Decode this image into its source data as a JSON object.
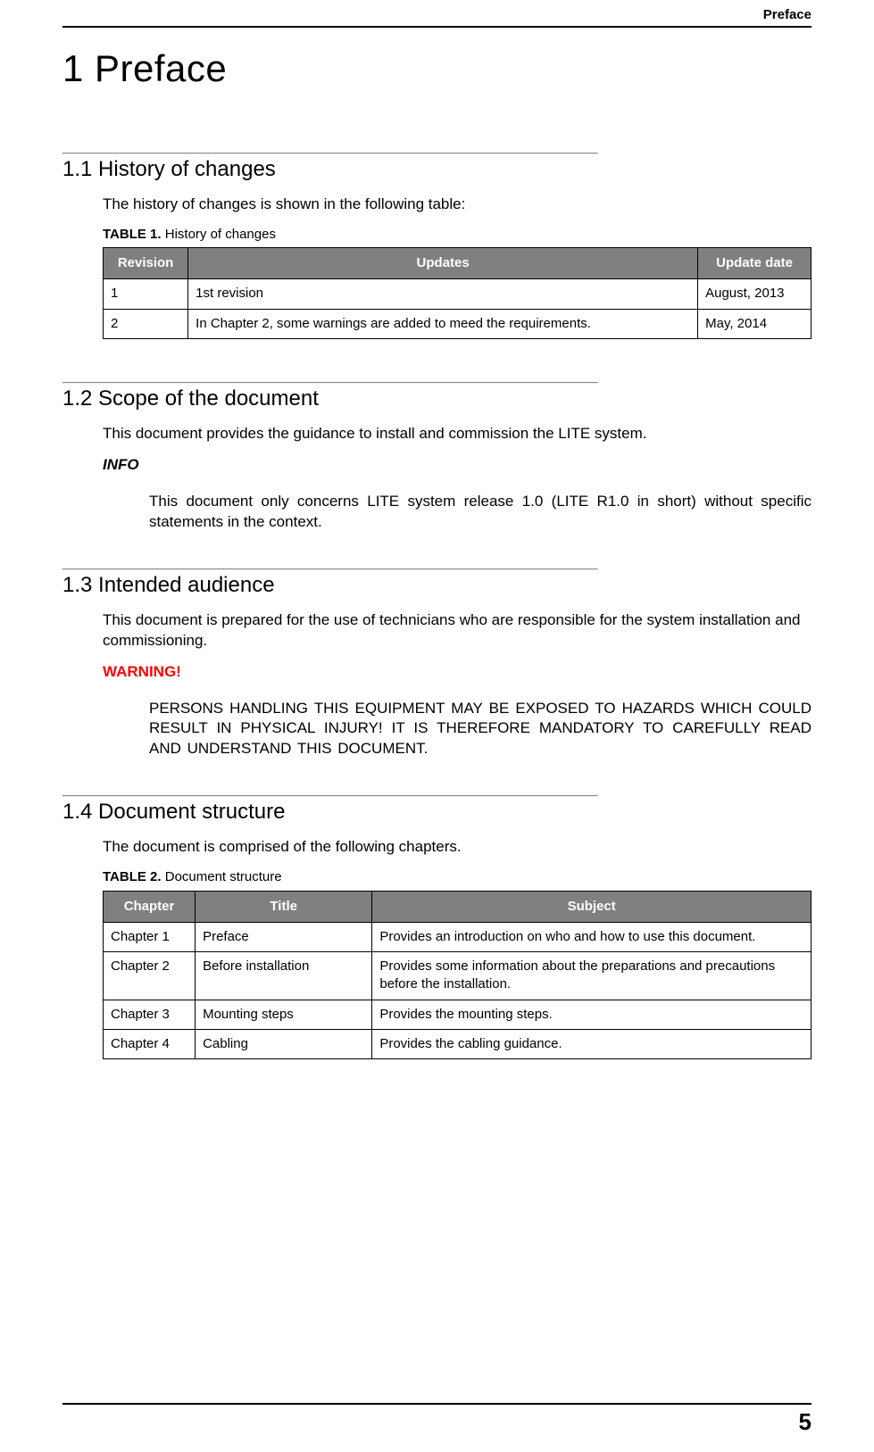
{
  "colors": {
    "text": "#000000",
    "background": "#ffffff",
    "table_header_bg": "#808080",
    "table_header_fg": "#ffffff",
    "table_border": "#000000",
    "warning": "#ff0000",
    "rule_gray": "#888888"
  },
  "typography": {
    "body_font": "Arial, Helvetica, sans-serif",
    "chapter_title_size_pt": 32,
    "section_heading_size_pt": 18,
    "body_size_pt": 13,
    "table_size_pt": 11
  },
  "header": {
    "running_title": "Preface"
  },
  "chapter": {
    "title": "1 Preface"
  },
  "sections": {
    "history": {
      "heading": "1.1 History of changes",
      "intro": "The history of changes is shown in the following table:",
      "table_caption_prefix": "TABLE 1.",
      "table_caption_text": " History of changes",
      "table": {
        "columns": [
          "Revision",
          "Updates",
          "Update date"
        ],
        "col_widths_pct": [
          12,
          72,
          16
        ],
        "rows": [
          [
            "1",
            "1st revision",
            "August, 2013"
          ],
          [
            "2",
            "In Chapter 2, some warnings are added to meed the requirements.",
            "May, 2014"
          ]
        ]
      }
    },
    "scope": {
      "heading": "1.2 Scope of the document",
      "intro": "This document provides the guidance to install and commission the LITE system.",
      "info_label": "INFO",
      "info_body": "This document only concerns LITE system release 1.0 (LITE R1.0 in short) without specific statements in the context."
    },
    "audience": {
      "heading": "1.3 Intended audience",
      "intro": "This document is prepared for the use of technicians who are responsible for the system installation and commissioning.",
      "warning_label": "WARNING!",
      "warning_body": "PERSONS HANDLING THIS EQUIPMENT MAY BE EXPOSED TO HAZARDS WHICH COULD RESULT IN PHYSICAL INJURY! IT IS THEREFORE MANDATORY TO CAREFULLY READ AND UNDERSTAND THIS DOCUMENT."
    },
    "structure": {
      "heading": "1.4 Document structure",
      "intro": "The document is comprised of the following chapters.",
      "table_caption_prefix": "TABLE 2.",
      "table_caption_text": " Document structure",
      "table": {
        "columns": [
          "Chapter",
          "Title",
          "Subject"
        ],
        "col_widths_pct": [
          13,
          25,
          62
        ],
        "rows": [
          [
            "Chapter 1",
            "Preface",
            "Provides an introduction on who and how to use this document."
          ],
          [
            "Chapter 2",
            "Before installation",
            "Provides some information about the preparations and precautions before the installation."
          ],
          [
            "Chapter 3",
            "Mounting steps",
            "Provides the mounting steps."
          ],
          [
            "Chapter 4",
            "Cabling",
            "Provides the cabling guidance."
          ]
        ]
      }
    }
  },
  "footer": {
    "page_number": "5"
  }
}
